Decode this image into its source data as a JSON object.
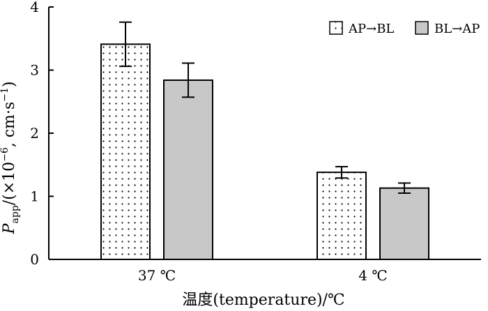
{
  "chart_data": {
    "type": "bar",
    "categories": [
      "37 ℃",
      "4 ℃"
    ],
    "series": [
      {
        "name": "AP→BL",
        "values": [
          3.41,
          1.38
        ],
        "errors": [
          0.35,
          0.09
        ],
        "fill": "#ffffff",
        "pattern": "dots"
      },
      {
        "name": "BL→AP",
        "values": [
          2.84,
          1.13
        ],
        "errors": [
          0.27,
          0.08
        ],
        "fill": "#c8c8c8",
        "pattern": "solid"
      }
    ],
    "ylim": [
      0,
      4
    ],
    "yticks": [
      "0",
      "1",
      "2",
      "3",
      "4"
    ],
    "ylabel": {
      "main": "P",
      "sub": "app",
      "rest": "/(×10",
      "exp1": "−6",
      "mid": ", cm·s",
      "exp2": "−1",
      "end": ")"
    },
    "xlabel": "温度(temperature)/℃",
    "legend": "top-right",
    "grid": false
  }
}
